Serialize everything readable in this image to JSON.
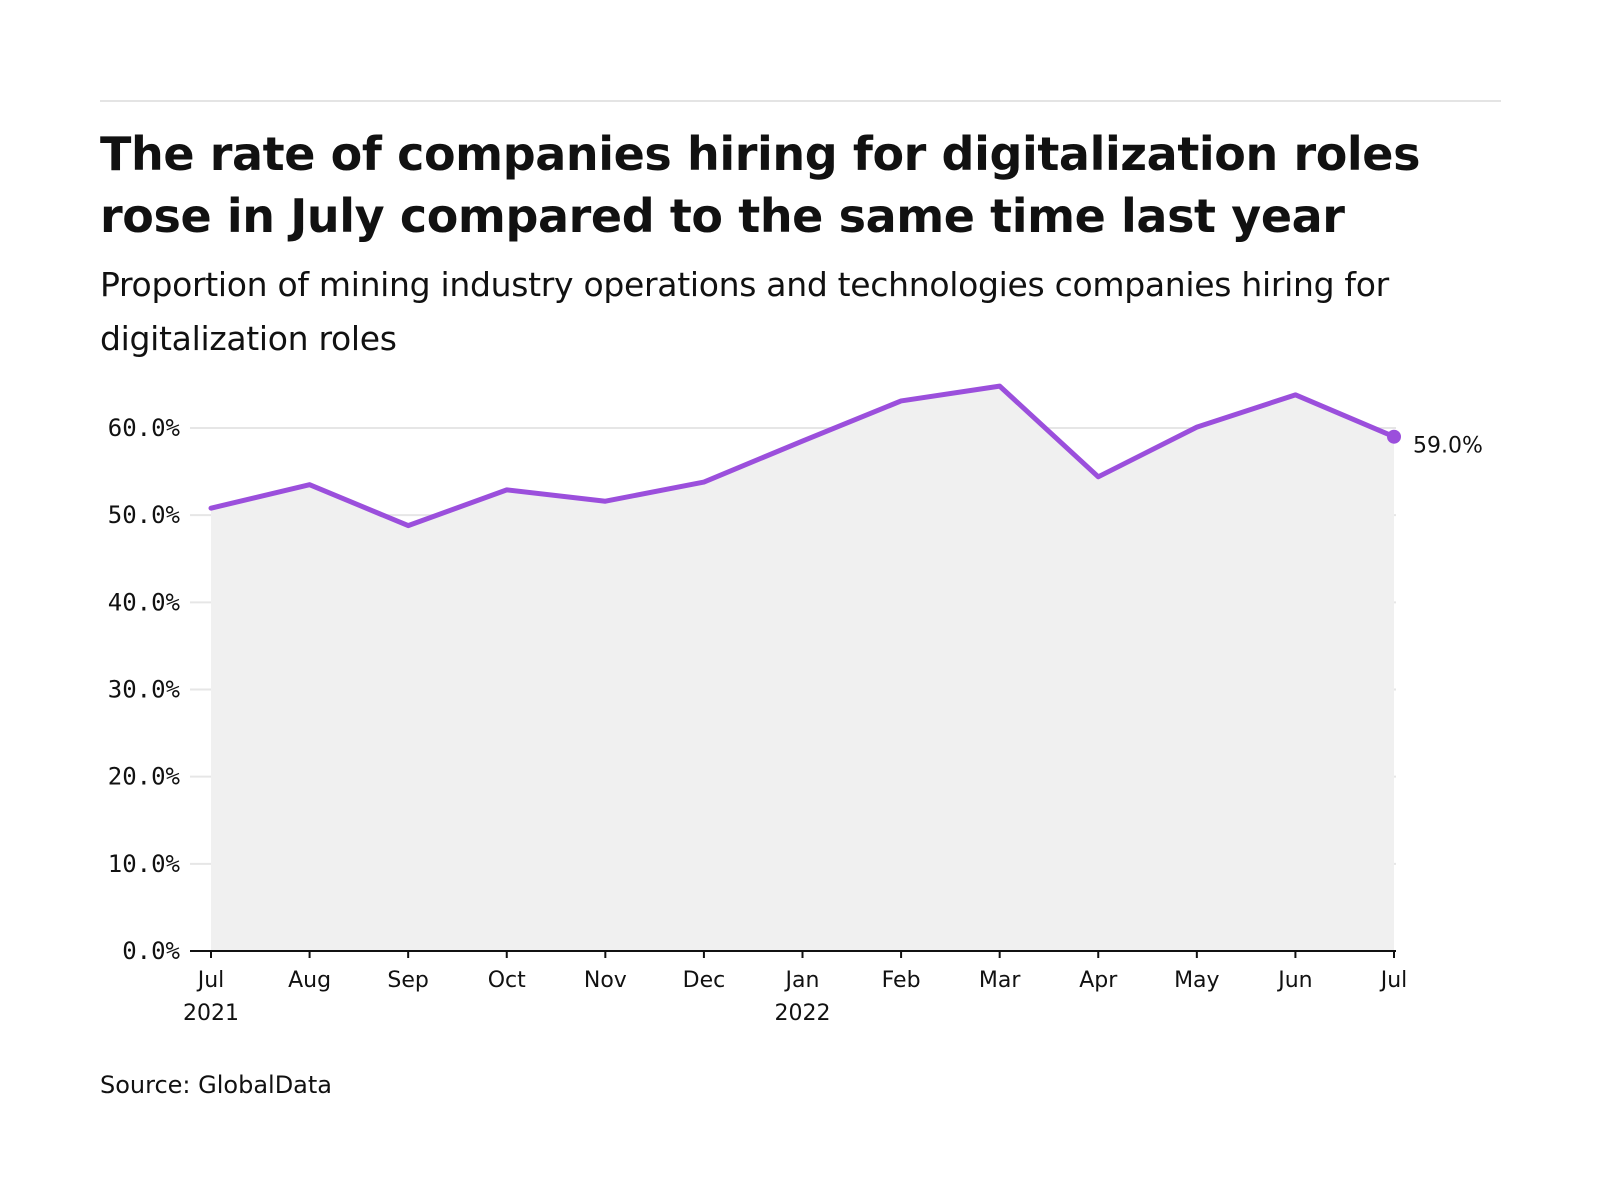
{
  "header": {
    "title": "The rate of companies hiring for digitalization roles rose in July compared to the same time last year",
    "subtitle": "Proportion of mining industry operations and technologies companies hiring for digitalization roles"
  },
  "footer": {
    "source": "Source: GlobalData"
  },
  "colors": {
    "line": "#9b4fdc",
    "area": "#f0f0f0",
    "grid": "#e6e6e6",
    "axis": "#111111"
  },
  "chart_data": {
    "type": "area",
    "title": "The rate of companies hiring for digitalization roles rose in July compared to the same time last year",
    "subtitle": "Proportion of mining industry operations and technologies companies hiring for digitalization roles",
    "xlabel": "",
    "ylabel": "",
    "x": [
      "2021-07",
      "2021-08",
      "2021-09",
      "2021-10",
      "2021-11",
      "2021-12",
      "2022-01",
      "2022-02",
      "2022-03",
      "2022-04",
      "2022-05",
      "2022-06",
      "2022-07"
    ],
    "x_tick_labels": [
      {
        "month": "Jul",
        "year": "2021"
      },
      {
        "month": "Aug",
        "year": ""
      },
      {
        "month": "Sep",
        "year": ""
      },
      {
        "month": "Oct",
        "year": ""
      },
      {
        "month": "Nov",
        "year": ""
      },
      {
        "month": "Dec",
        "year": ""
      },
      {
        "month": "Jan",
        "year": "2022"
      },
      {
        "month": "Feb",
        "year": ""
      },
      {
        "month": "Mar",
        "year": ""
      },
      {
        "month": "Apr",
        "year": ""
      },
      {
        "month": "May",
        "year": ""
      },
      {
        "month": "Jun",
        "year": ""
      },
      {
        "month": "Jul",
        "year": ""
      }
    ],
    "series": [
      {
        "values": [
          50.8,
          53.5,
          48.8,
          52.9,
          51.6,
          53.8,
          58.5,
          63.1,
          64.8,
          54.4,
          60.1,
          63.8,
          59.0
        ]
      }
    ],
    "ylim": [
      0,
      65
    ],
    "y_ticks": [
      0,
      10,
      20,
      30,
      40,
      50,
      60
    ],
    "y_tick_labels": [
      "0.0%",
      "10.0%",
      "20.0%",
      "30.0%",
      "40.0%",
      "50.0%",
      "60.0%"
    ],
    "end_label": "59.0%",
    "grid": true,
    "legend": "none"
  }
}
